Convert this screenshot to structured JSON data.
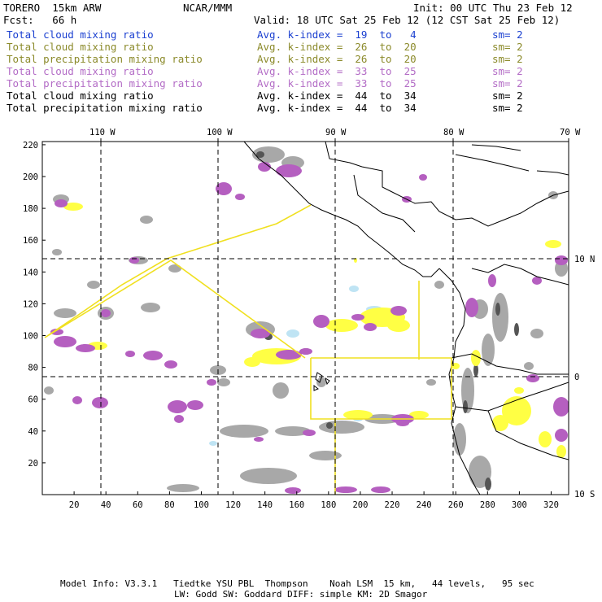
{
  "header": {
    "title": "TORERO  15km ARW",
    "center": "NCAR/MMM",
    "init": "Init: 00 UTC Thu 23 Feb 12",
    "fcst": "Fcst:   66 h",
    "valid": "Valid: 18 UTC Sat 25 Feb 12 (12 CST Sat 25 Feb 12)"
  },
  "legend": [
    {
      "field": "Total cloud mixing ratio",
      "kindex": "Avg. k-index =  19  to   4",
      "sm": "sm= 2",
      "color": "#1a3fd0"
    },
    {
      "field": "Total cloud mixing ratio",
      "kindex": "Avg. k-index =  26  to  20",
      "sm": "sm= 2",
      "color": "#8b8a2a"
    },
    {
      "field": "Total precipitation mixing ratio",
      "kindex": "Avg. k-index =  26  to  20",
      "sm": "sm= 2",
      "color": "#8b8a2a"
    },
    {
      "field": "Total cloud mixing ratio",
      "kindex": "Avg. k-index =  33  to  25",
      "sm": "sm= 2",
      "color": "#b36cc6"
    },
    {
      "field": "Total precipitation mixing ratio",
      "kindex": "Avg. k-index =  33  to  25",
      "sm": "sm= 2",
      "color": "#b36cc6"
    },
    {
      "field": "Total cloud mixing ratio",
      "kindex": "Avg. k-index =  44  to  34",
      "sm": "sm= 2",
      "color": "#000000"
    },
    {
      "field": "Total precipitation mixing ratio",
      "kindex": "Avg. k-index =  44  to  34",
      "sm": "sm= 2",
      "color": "#000000"
    }
  ],
  "map": {
    "lon_labels": [
      "110 W",
      "100 W",
      "90 W",
      "80 W",
      "70 W"
    ],
    "lat_labels": [
      "10 N",
      "0",
      "10 S"
    ],
    "x_ticks": [
      "20",
      "40",
      "60",
      "80",
      "100",
      "120",
      "140",
      "160",
      "180",
      "200",
      "220",
      "240",
      "260",
      "280",
      "300",
      "320"
    ],
    "y_ticks": [
      "220",
      "200",
      "180",
      "160",
      "140",
      "120",
      "100",
      "80",
      "60",
      "40",
      "20"
    ],
    "colors": {
      "cloud": "#a8a8a8",
      "cloud_dense": "#5a5a5a",
      "precip_purple": "#b55fc0",
      "yellow": "#ffff44",
      "light_blue": "#bfe4f4",
      "track": "#f0e020"
    }
  },
  "footer": {
    "line1": "Model Info: V3.3.1   Tiedtke YSU PBL  Thompson    Noah LSM  15 km,   44 levels,   95 sec",
    "line2": "LW: Godd SW: Goddard DIFF: simple KM: 2D Smagor"
  }
}
